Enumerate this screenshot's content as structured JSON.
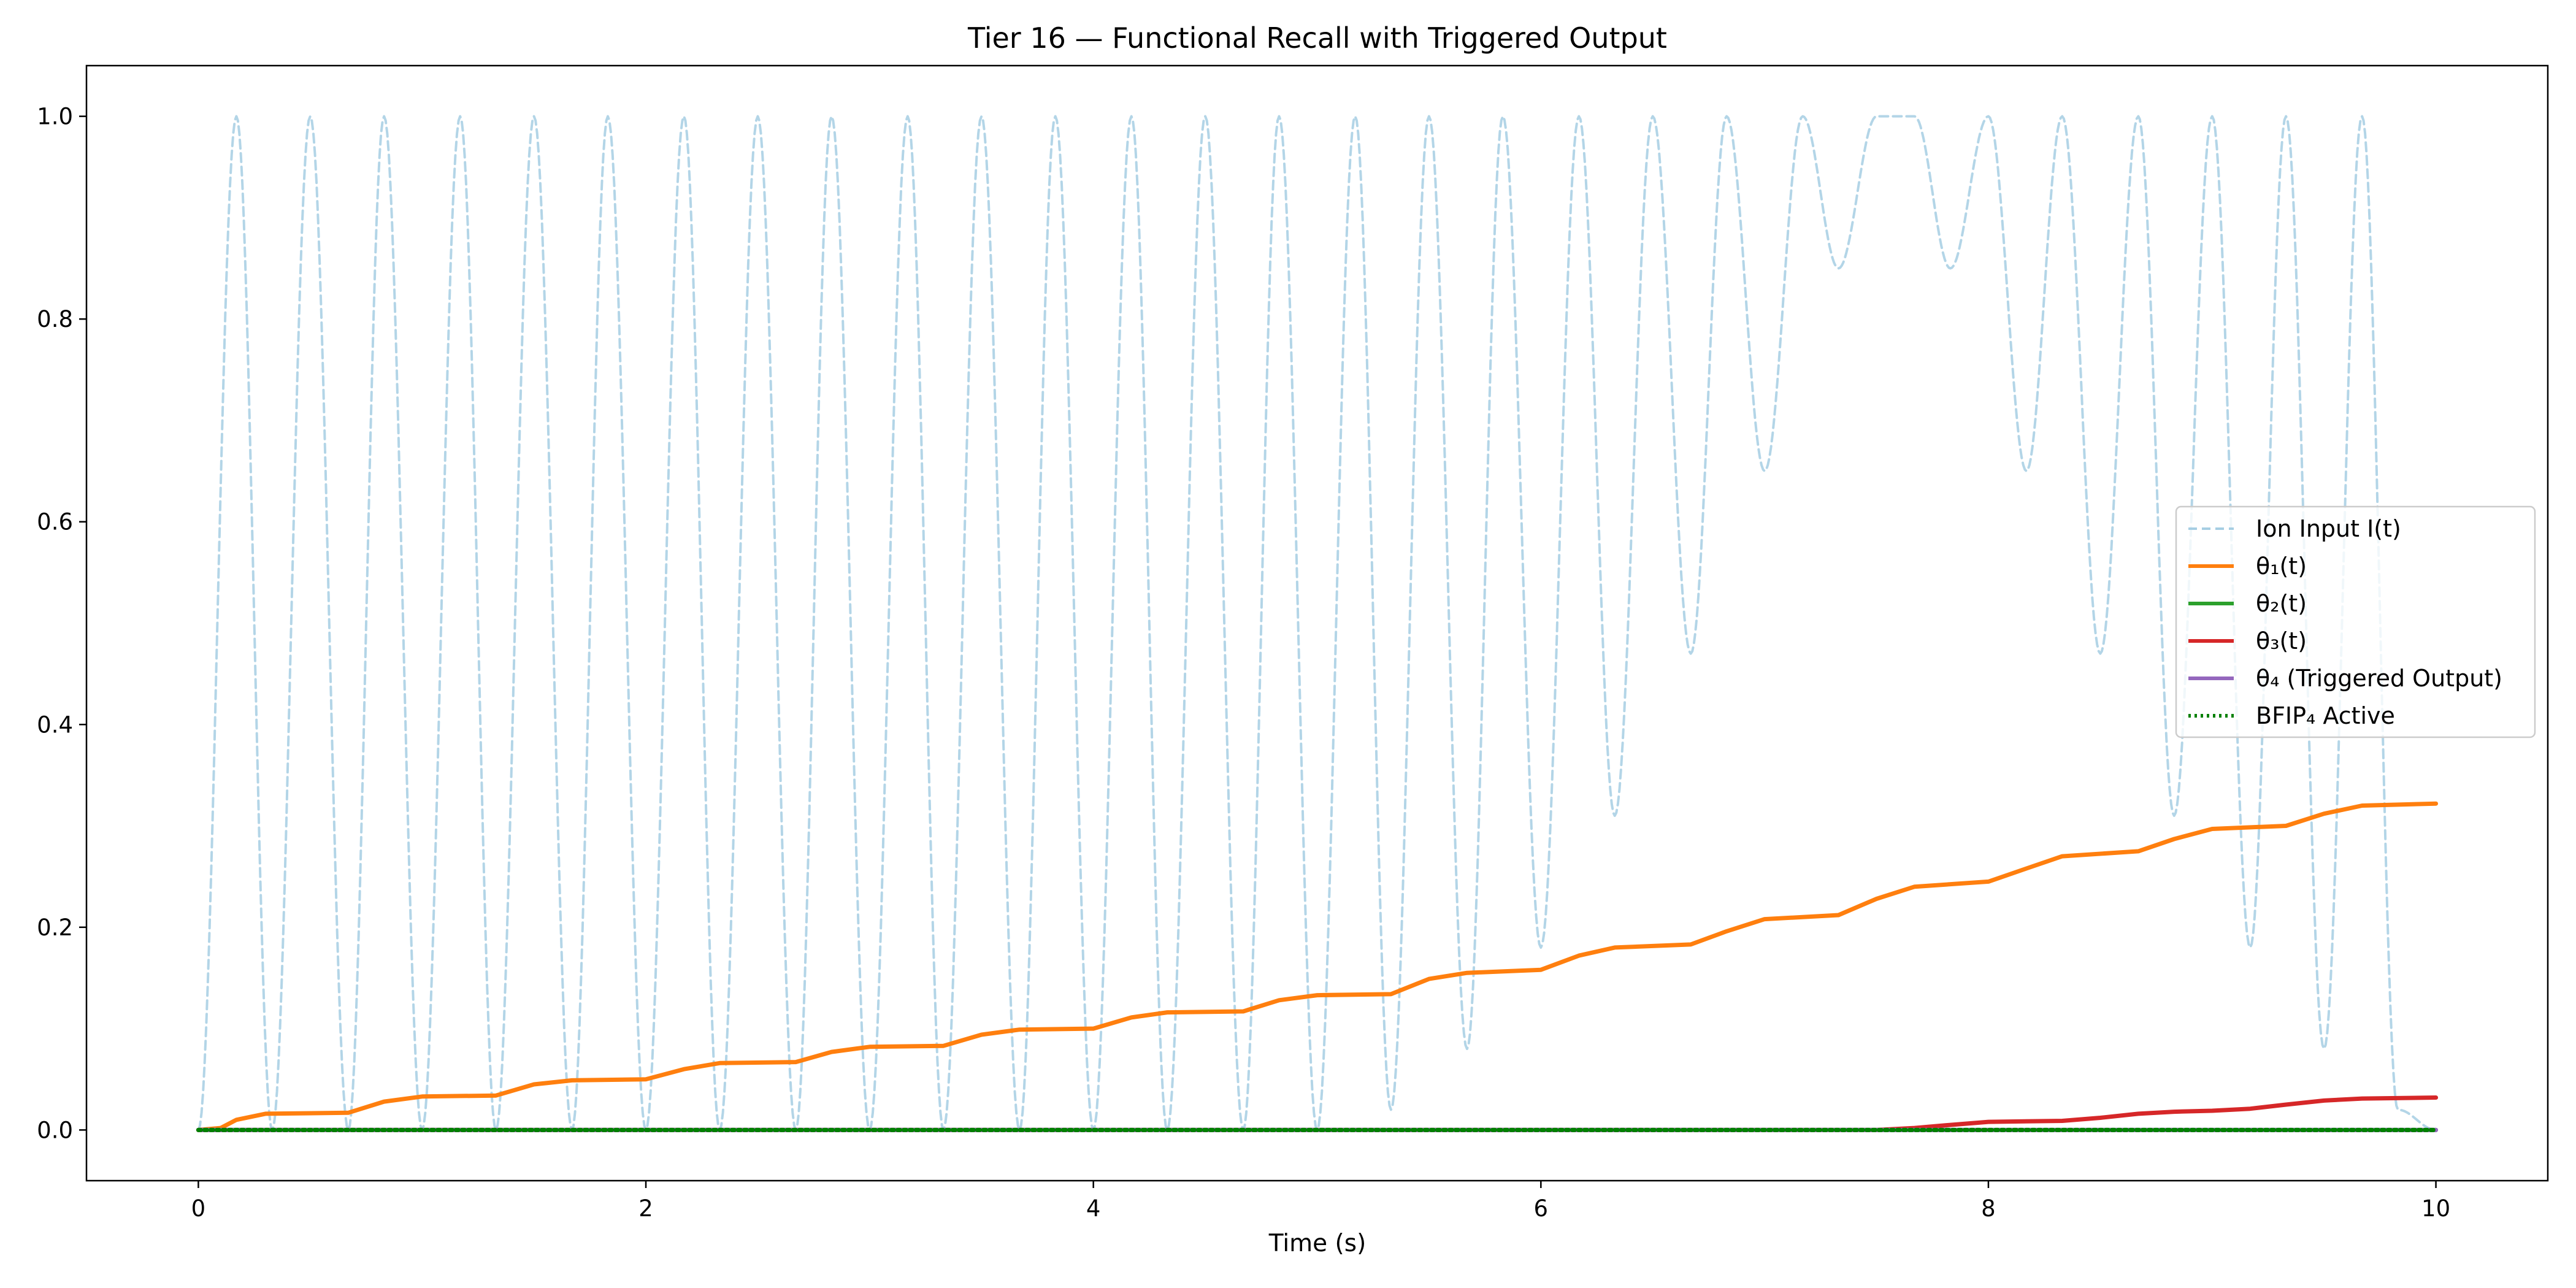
{
  "chart_data": {
    "type": "line",
    "title": "Tier 16 — Functional Recall with Triggered Output",
    "xlabel": "Time (s)",
    "ylabel": "",
    "xlim": [
      -0.5,
      10.5
    ],
    "ylim": [
      -0.05,
      1.05
    ],
    "xticks": [
      0,
      2,
      4,
      6,
      8,
      10
    ],
    "yticks": [
      0.0,
      0.2,
      0.4,
      0.6,
      0.8,
      1.0
    ],
    "xtick_labels": [
      "0",
      "2",
      "4",
      "6",
      "8",
      "10"
    ],
    "ytick_labels": [
      "0.0",
      "0.2",
      "0.4",
      "0.6",
      "0.8",
      "1.0"
    ],
    "grid": false,
    "legend_position": "center-right",
    "series": [
      {
        "name": "Ion Input I(t)",
        "color": "#a6cee3",
        "style": "dashed",
        "peaks": [
          [
            0.0,
            0.0
          ],
          [
            0.17,
            1.0
          ],
          [
            0.33,
            0.0
          ],
          [
            0.5,
            1.0
          ],
          [
            0.67,
            0.0
          ],
          [
            0.83,
            1.0
          ],
          [
            1.0,
            0.0
          ],
          [
            1.17,
            1.0
          ],
          [
            1.33,
            0.0
          ],
          [
            1.5,
            1.0
          ],
          [
            1.67,
            0.0
          ],
          [
            1.83,
            1.0
          ],
          [
            2.0,
            0.0
          ],
          [
            2.17,
            1.0
          ],
          [
            2.33,
            0.0
          ],
          [
            2.5,
            1.0
          ],
          [
            2.67,
            0.0
          ],
          [
            2.83,
            1.0
          ],
          [
            3.0,
            0.0
          ],
          [
            3.17,
            1.0
          ],
          [
            3.33,
            0.0
          ],
          [
            3.5,
            1.0
          ],
          [
            3.67,
            0.0
          ],
          [
            3.83,
            1.0
          ],
          [
            4.0,
            0.0
          ],
          [
            4.17,
            1.0
          ],
          [
            4.33,
            0.0
          ],
          [
            4.5,
            1.0
          ],
          [
            4.67,
            0.0
          ],
          [
            4.83,
            1.0
          ],
          [
            5.0,
            0.0
          ],
          [
            5.17,
            1.0
          ],
          [
            5.33,
            0.02
          ],
          [
            5.5,
            1.0
          ],
          [
            5.67,
            0.08
          ],
          [
            5.83,
            1.0
          ],
          [
            6.0,
            0.18
          ],
          [
            6.17,
            1.0
          ],
          [
            6.33,
            0.31
          ],
          [
            6.5,
            1.0
          ],
          [
            6.67,
            0.47
          ],
          [
            6.83,
            1.0
          ],
          [
            7.0,
            0.65
          ],
          [
            7.17,
            1.0
          ],
          [
            7.33,
            0.85
          ],
          [
            7.5,
            1.0
          ],
          [
            7.67,
            1.0
          ],
          [
            7.83,
            0.85
          ],
          [
            8.0,
            1.0
          ],
          [
            8.17,
            0.65
          ],
          [
            8.33,
            1.0
          ],
          [
            8.5,
            0.47
          ],
          [
            8.67,
            1.0
          ],
          [
            8.83,
            0.31
          ],
          [
            9.0,
            1.0
          ],
          [
            9.17,
            0.18
          ],
          [
            9.33,
            1.0
          ],
          [
            9.5,
            0.08
          ],
          [
            9.67,
            1.0
          ],
          [
            9.83,
            0.02
          ],
          [
            10.0,
            0.0
          ]
        ]
      },
      {
        "name": "θ₁(t)",
        "color": "#ff7f0e",
        "style": "solid",
        "x": [
          0,
          0.1,
          0.17,
          0.3,
          0.67,
          0.83,
          1.0,
          1.33,
          1.5,
          1.67,
          2.0,
          2.17,
          2.33,
          2.67,
          2.83,
          3.0,
          3.33,
          3.5,
          3.67,
          4.0,
          4.17,
          4.33,
          4.67,
          4.83,
          5.0,
          5.33,
          5.5,
          5.67,
          6.0,
          6.17,
          6.33,
          6.67,
          6.83,
          7.0,
          7.33,
          7.5,
          7.67,
          8.0,
          8.17,
          8.33,
          8.67,
          8.83,
          9.0,
          9.33,
          9.5,
          9.67,
          10.0
        ],
        "values": [
          0,
          0.002,
          0.01,
          0.016,
          0.017,
          0.028,
          0.033,
          0.034,
          0.045,
          0.049,
          0.05,
          0.06,
          0.066,
          0.067,
          0.077,
          0.082,
          0.083,
          0.094,
          0.099,
          0.1,
          0.111,
          0.116,
          0.117,
          0.128,
          0.133,
          0.134,
          0.149,
          0.155,
          0.158,
          0.172,
          0.18,
          0.183,
          0.196,
          0.208,
          0.212,
          0.228,
          0.24,
          0.245,
          0.258,
          0.27,
          0.275,
          0.287,
          0.297,
          0.3,
          0.312,
          0.32,
          0.322
        ]
      },
      {
        "name": "θ₂(t)",
        "color": "#2ca02c",
        "style": "solid",
        "x": [
          0,
          10
        ],
        "values": [
          0,
          0
        ]
      },
      {
        "name": "θ₃(t)",
        "color": "#d62728",
        "style": "solid",
        "x": [
          0,
          7.5,
          7.67,
          7.83,
          8.0,
          8.33,
          8.5,
          8.67,
          8.83,
          9.0,
          9.17,
          9.33,
          9.5,
          9.67,
          10.0
        ],
        "values": [
          0,
          0,
          0.002,
          0.005,
          0.008,
          0.009,
          0.012,
          0.016,
          0.018,
          0.019,
          0.021,
          0.025,
          0.029,
          0.031,
          0.032
        ]
      },
      {
        "name": "θ₄ (Triggered Output)",
        "color": "#9467bd",
        "style": "solid",
        "x": [
          0,
          10
        ],
        "values": [
          0,
          0
        ]
      },
      {
        "name": "BFIP₄ Active",
        "color": "#008000",
        "style": "dotted",
        "x": [
          0,
          10
        ],
        "values": [
          0,
          0
        ]
      }
    ]
  }
}
